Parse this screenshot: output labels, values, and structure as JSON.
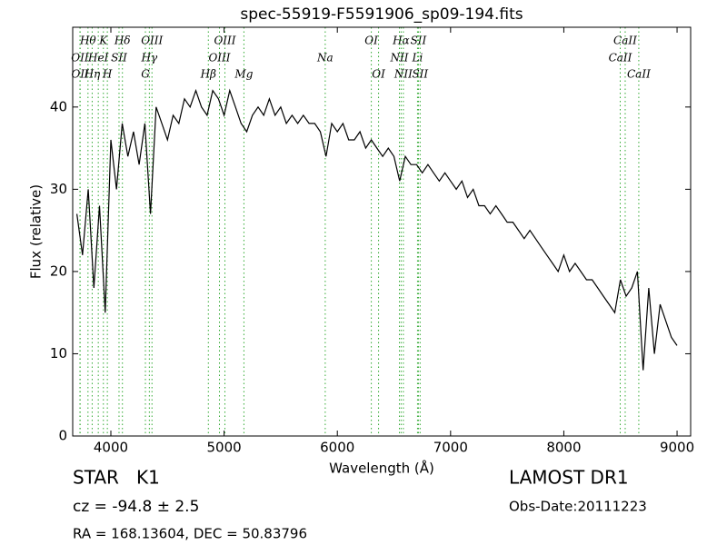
{
  "chart_data": {
    "type": "line",
    "title": "spec-55919-F5591906_sp09-194.fits",
    "x_label": "Wavelength (Å)",
    "y_label": "Flux (relative)",
    "color": "#000000",
    "line_color": "#33aa33",
    "xlim": [
      3663,
      9120
    ],
    "ylim": [
      0,
      49.7
    ],
    "xticks": [
      4000,
      5000,
      6000,
      7000,
      8000,
      9000
    ],
    "yticks": [
      0,
      10,
      20,
      30,
      40
    ],
    "x": [
      3700,
      3750,
      3800,
      3850,
      3900,
      3950,
      4000,
      4050,
      4100,
      4150,
      4200,
      4250,
      4300,
      4350,
      4400,
      4450,
      4500,
      4550,
      4600,
      4650,
      4700,
      4750,
      4800,
      4850,
      4900,
      4950,
      5000,
      5050,
      5100,
      5150,
      5200,
      5250,
      5300,
      5350,
      5400,
      5450,
      5500,
      5550,
      5600,
      5650,
      5700,
      5750,
      5800,
      5850,
      5900,
      5950,
      6000,
      6050,
      6100,
      6150,
      6200,
      6250,
      6300,
      6350,
      6400,
      6450,
      6500,
      6550,
      6600,
      6650,
      6700,
      6750,
      6800,
      6850,
      6900,
      6950,
      7000,
      7050,
      7100,
      7150,
      7200,
      7250,
      7300,
      7350,
      7400,
      7450,
      7500,
      7550,
      7600,
      7650,
      7700,
      7750,
      7800,
      7850,
      7900,
      7950,
      8000,
      8050,
      8100,
      8150,
      8200,
      8250,
      8300,
      8350,
      8400,
      8450,
      8500,
      8550,
      8600,
      8650,
      8700,
      8750,
      8800,
      8850,
      8900,
      8950,
      9000
    ],
    "values": [
      27,
      22,
      30,
      18,
      28,
      15,
      36,
      30,
      38,
      34,
      37,
      33,
      38,
      27,
      40,
      38,
      36,
      39,
      38,
      41,
      40,
      42,
      40,
      39,
      42,
      41,
      39,
      42,
      40,
      38,
      37,
      39,
      40,
      39,
      41,
      39,
      40,
      38,
      39,
      38,
      39,
      38,
      38,
      37,
      34,
      38,
      37,
      38,
      36,
      36,
      37,
      35,
      36,
      35,
      34,
      35,
      34,
      31,
      34,
      33,
      33,
      32,
      33,
      32,
      31,
      32,
      31,
      30,
      31,
      29,
      30,
      28,
      28,
      27,
      28,
      27,
      26,
      26,
      25,
      24,
      25,
      24,
      23,
      22,
      21,
      20,
      22,
      20,
      21,
      20,
      19,
      19,
      18,
      17,
      16,
      15,
      19,
      17,
      18,
      20,
      8,
      18,
      10,
      16,
      14,
      12,
      11
    ],
    "spectral_lines": [
      [
        {
          "label": "Hθ",
          "wavelength": 3798
        },
        {
          "label": "K",
          "wavelength": 3934
        },
        {
          "label": "Hδ",
          "wavelength": 4102
        },
        {
          "label": "OIII",
          "wavelength": 4363
        },
        {
          "label": "OIII",
          "wavelength": 5007
        },
        {
          "label": "OI",
          "wavelength": 6300
        },
        {
          "label": "Hα",
          "wavelength": 6563
        },
        {
          "label": "SII",
          "wavelength": 6716
        },
        {
          "label": "CaII",
          "wavelength": 8542
        }
      ],
      [
        {
          "label": "OII",
          "wavelength": 3727
        },
        {
          "label": "HeI",
          "wavelength": 3889
        },
        {
          "label": "SII",
          "wavelength": 4072
        },
        {
          "label": "Hγ",
          "wavelength": 4340
        },
        {
          "label": "OIII",
          "wavelength": 4959
        },
        {
          "label": "Na",
          "wavelength": 5893
        },
        {
          "label": "NII",
          "wavelength": 6548
        },
        {
          "label": "Li",
          "wavelength": 6708
        },
        {
          "label": "CaII",
          "wavelength": 8498
        }
      ],
      [
        {
          "label": "OII",
          "wavelength": 3729
        },
        {
          "label": "Hη",
          "wavelength": 3835
        },
        {
          "label": "H",
          "wavelength": 3969
        },
        {
          "label": "G",
          "wavelength": 4305
        },
        {
          "label": "Hβ",
          "wavelength": 4861
        },
        {
          "label": "Mg",
          "wavelength": 5175
        },
        {
          "label": "OI",
          "wavelength": 6364
        },
        {
          "label": "NII",
          "wavelength": 6583
        },
        {
          "label": "SII",
          "wavelength": 6731
        },
        {
          "label": "CaII",
          "wavelength": 8662
        }
      ]
    ]
  },
  "info": {
    "class": "STAR   K1",
    "cz": "cz = -94.8 ± 2.5",
    "coords": "RA = 168.13604, DEC = 50.83796",
    "survey": "LAMOST DR1",
    "obs_date": "Obs-Date:20111223"
  }
}
